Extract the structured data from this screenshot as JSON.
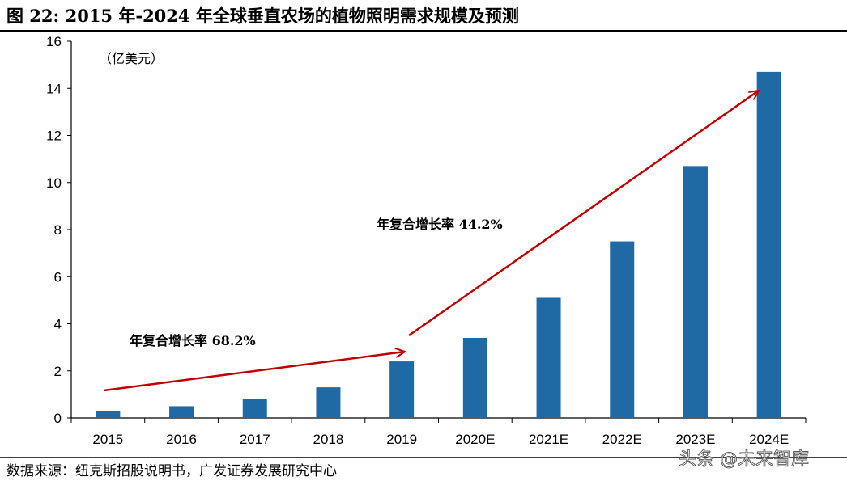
{
  "title": "图 22: 2015 年-2024 年全球垂直农场的植物照明需求规模及预测",
  "source": "数据来源：纽克斯招股说明书，广发证券发展研究中心",
  "watermark": "头条 @未来智库",
  "colors": {
    "bar": "#1f6aa5",
    "arrow": "#c00000"
  },
  "chart_data": {
    "type": "bar",
    "unit_label": "（亿美元）",
    "categories": [
      "2015",
      "2016",
      "2017",
      "2018",
      "2019",
      "2020E",
      "2021E",
      "2022E",
      "2023E",
      "2024E"
    ],
    "values": [
      0.3,
      0.5,
      0.8,
      1.3,
      2.4,
      3.4,
      5.1,
      7.5,
      10.7,
      14.7
    ],
    "ylim": [
      0,
      16
    ],
    "yticks": [
      0,
      2,
      4,
      6,
      8,
      10,
      12,
      14,
      16
    ],
    "grid": false,
    "annotations": [
      {
        "text": "年复合增长率 68.2%",
        "from_category": "2015",
        "to_category": "2019"
      },
      {
        "text": "年复合增长率 44.2%",
        "from_category": "2019",
        "to_category": "2024E"
      }
    ]
  }
}
